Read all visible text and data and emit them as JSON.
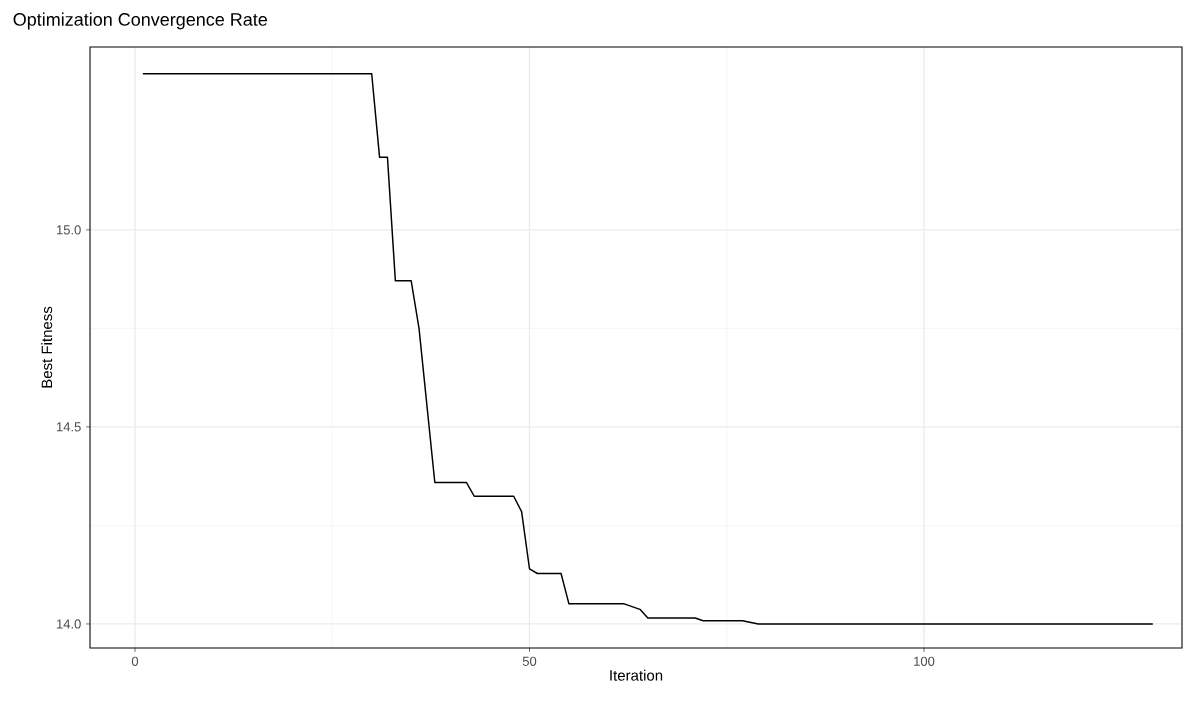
{
  "chart_data": {
    "type": "line",
    "title": "Optimization Convergence Rate",
    "xlabel": "Iteration",
    "ylabel": "Best Fitness",
    "x": [
      1,
      30,
      31,
      32,
      33,
      35,
      36,
      38,
      42,
      43,
      48,
      49,
      50,
      51,
      54,
      55,
      62,
      64,
      65,
      71,
      72,
      77,
      79,
      129
    ],
    "values": [
      15.396,
      15.396,
      15.184,
      15.184,
      14.871,
      14.871,
      14.75,
      14.359,
      14.359,
      14.324,
      14.324,
      14.285,
      14.14,
      14.128,
      14.128,
      14.051,
      14.051,
      14.037,
      14.015,
      14.015,
      14.008,
      14.008,
      14.0,
      14.0
    ],
    "color": "#000000",
    "xlim": [
      -5.7,
      132.7
    ],
    "ylim": [
      13.939,
      15.464
    ],
    "xticks": [
      0,
      50,
      100
    ],
    "yticks": [
      {
        "value": 14.0,
        "label": "14.0"
      },
      {
        "value": 14.5,
        "label": "14.5"
      },
      {
        "value": 15.0,
        "label": "15.0"
      }
    ],
    "grid": true
  }
}
